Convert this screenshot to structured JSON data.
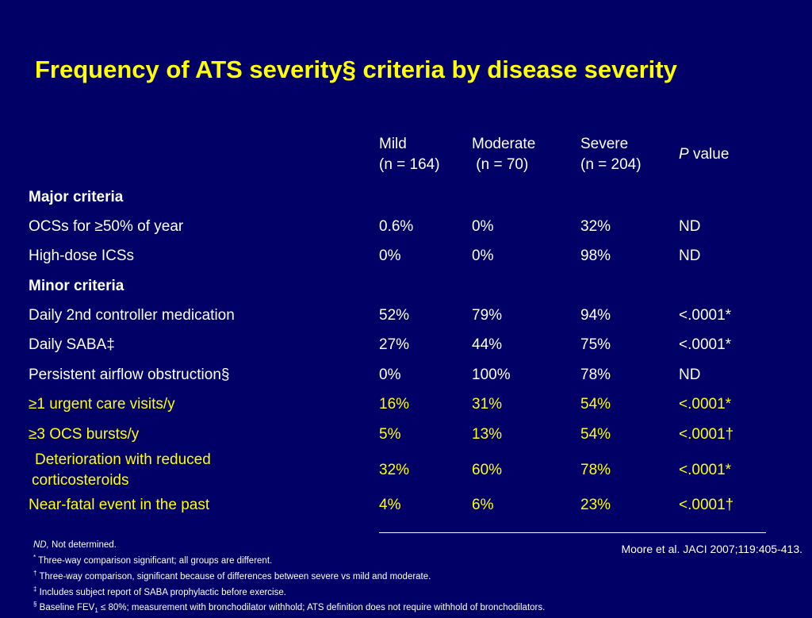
{
  "title": "Frequency of ATS severity§ criteria by disease severity",
  "header": {
    "mild": [
      "Mild",
      "(n = 164)"
    ],
    "moderate": [
      "Moderate",
      " (n = 70)"
    ],
    "severe": [
      "Severe",
      "(n = 204)"
    ],
    "p_italic": "P",
    "p_rest": " value"
  },
  "sections": {
    "major": "Major criteria",
    "minor": "Minor criteria"
  },
  "rows": [
    {
      "label": " OCSs for ≥50% of year",
      "mild": "0.6%",
      "moderate": "0%",
      "severe": "32%",
      "p": "ND"
    },
    {
      "label": " High-dose ICSs",
      "mild": "0%",
      "moderate": "0%",
      "severe": "98%",
      "p": "ND"
    },
    {
      "label": " Daily 2nd controller medication",
      "mild": "52%",
      "moderate": "79%",
      "severe": "94%",
      "p": "<.0001*"
    },
    {
      "label": " Daily SABA‡",
      "mild": "27%",
      "moderate": "44%",
      "severe": "75%",
      "p": "<.0001*"
    },
    {
      "label": " Persistent airflow obstruction§",
      "mild": "0%",
      "moderate": "100%",
      "severe": "78%",
      "p": "ND"
    },
    {
      "label": " ≥1 urgent care visits/y",
      "mild": "16%",
      "moderate": "31%",
      "severe": "54%",
      "p": "<.0001*"
    },
    {
      "label": " ≥3 OCS bursts/y",
      "mild": "5%",
      "moderate": "13%",
      "severe": "54%",
      "p": "<.0001†"
    },
    {
      "label_line1": " Deterioration with reduced",
      "label_line2": "corticosteroids",
      "mild": "32%",
      "moderate": "60%",
      "severe": "78%",
      "p": "<.0001*"
    },
    {
      "label": " Near-fatal event in the past",
      "mild": "4%",
      "moderate": "6%",
      "severe": "23%",
      "p": "<.0001†"
    }
  ],
  "footnotes": {
    "nd_abbr": "ND,",
    "nd_text": " Not determined.",
    "star_sym": "*",
    "star_text": " Three-way comparison significant; all groups are different.",
    "dagger_sym": "†",
    "dagger_text": " Three-way comparison, significant because of differences between severe vs mild and moderate.",
    "ddagger_sym": "‡",
    "ddagger_text": " Includes subject report of SABA prophylactic before exercise.",
    "section_sym": "§",
    "section_text_a": " Baseline FEV",
    "section_sub": "1",
    "section_text_b": " ≤ 80%; measurement with bronchodilator withhold; ATS definition does not require withhold of bronchodilators."
  },
  "citation": "Moore et al. JACI 2007;119:405-413.",
  "colors": {
    "background": "#000066",
    "title": "#ffff00",
    "text": "#ffffff",
    "highlight": "#ffff00"
  }
}
